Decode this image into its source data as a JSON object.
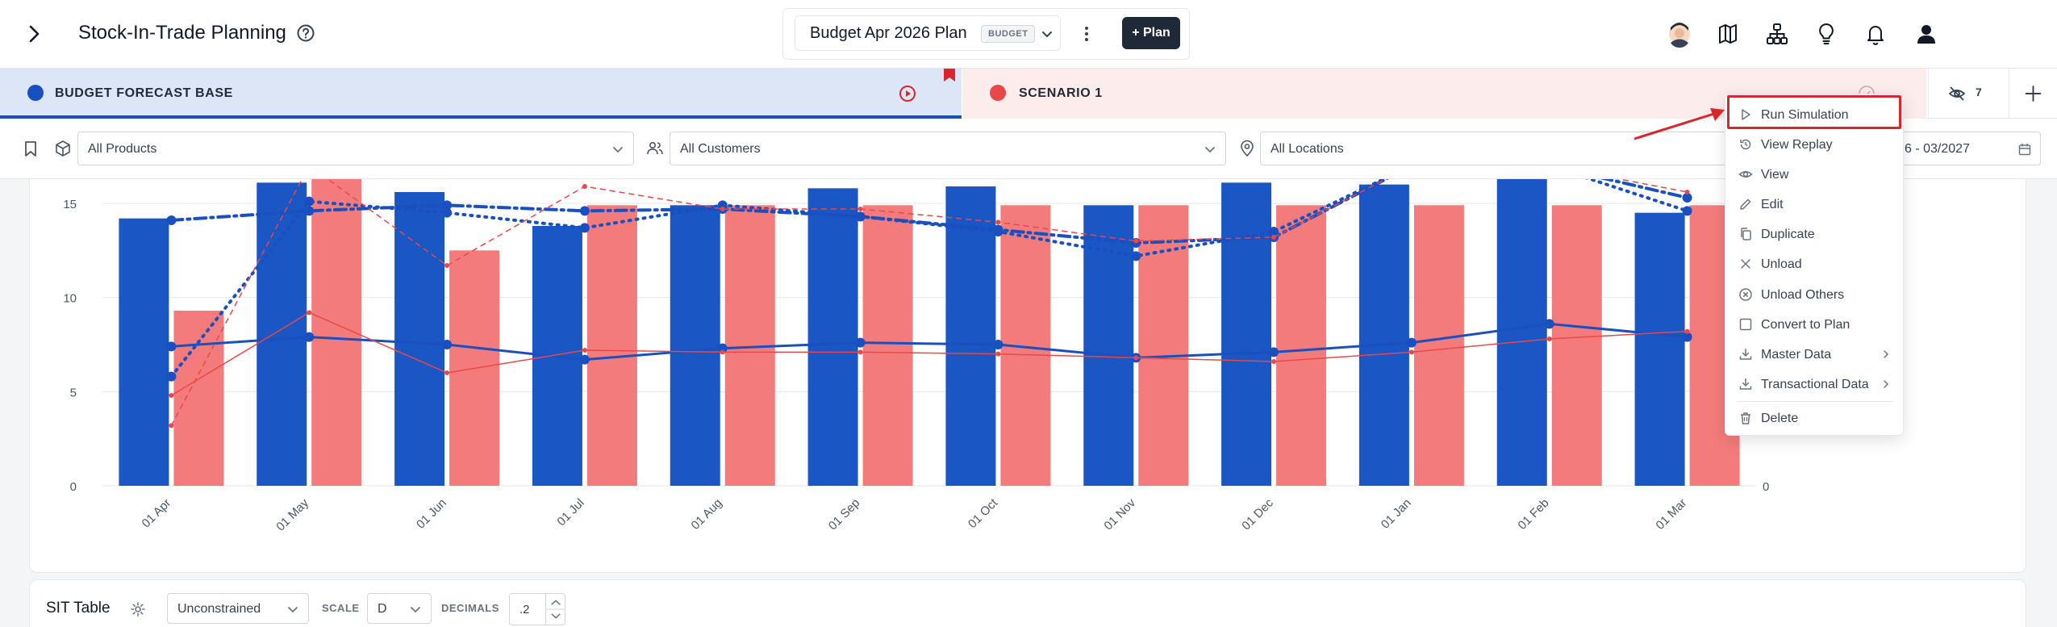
{
  "header": {
    "title": "Stock-In-Trade Planning",
    "plan_name": "Budget Apr 2026 Plan",
    "plan_badge": "BUDGET",
    "add_plan_label": "+ Plan"
  },
  "scenarios": {
    "base": {
      "label": "BUDGET FORECAST BASE",
      "color": "#1a4fbf"
    },
    "scenario1": {
      "label": "SCENARIO 1",
      "color": "#e94848"
    },
    "hidden_count": "7"
  },
  "filters": {
    "products": "All Products",
    "customers": "All Customers",
    "locations": "All Locations",
    "date_range": "6 - 03/2027"
  },
  "chart_data": {
    "type": "bar",
    "categories": [
      "01 Apr",
      "01 May",
      "01 Jun",
      "01 Jul",
      "01 Aug",
      "01 Sep",
      "01 Oct",
      "01 Nov",
      "01 Dec",
      "01 Jan",
      "01 Feb",
      "01 Mar"
    ],
    "ylim": [
      0,
      16.5
    ],
    "y_ticks": [
      "0",
      "5",
      "10",
      "15"
    ],
    "y2_ticks": [
      "0"
    ],
    "grid": true,
    "bars": [
      {
        "color": "#1a56c4",
        "values": [
          14.2,
          16.1,
          15.6,
          13.8,
          14.9,
          15.8,
          15.9,
          14.9,
          16.1,
          16.0,
          16.5,
          14.5
        ]
      },
      {
        "color": "#f47b7b",
        "values": [
          9.3,
          16.5,
          12.5,
          14.9,
          14.9,
          14.9,
          14.9,
          14.9,
          14.9,
          14.9,
          14.9,
          14.9
        ]
      }
    ],
    "lines": [
      {
        "color": "#1a4fbf",
        "style": "solid",
        "values": [
          7.4,
          7.9,
          7.5,
          6.7,
          7.3,
          7.6,
          7.5,
          6.8,
          7.1,
          7.6,
          8.6,
          7.9
        ]
      },
      {
        "color": "#1a4fbf",
        "style": "dashdot",
        "values": [
          14.1,
          14.6,
          14.9,
          14.6,
          14.7,
          14.3,
          13.6,
          12.9,
          13.2,
          17.0,
          17.0,
          15.3
        ]
      },
      {
        "color": "#1a4fbf",
        "style": "dotted",
        "values": [
          5.8,
          15.1,
          14.5,
          13.7,
          14.9,
          14.3,
          13.5,
          12.2,
          13.5,
          17.0,
          17.0,
          14.6
        ]
      },
      {
        "color": "#e94848",
        "style": "solid",
        "values": [
          4.8,
          9.2,
          6.0,
          7.2,
          7.1,
          7.1,
          7.0,
          6.8,
          6.6,
          7.1,
          7.8,
          8.2
        ]
      },
      {
        "color": "#e94848",
        "style": "dashed",
        "values": [
          3.2,
          17.0,
          11.7,
          15.9,
          14.7,
          14.7,
          14.0,
          13.0,
          13.2,
          17.0,
          17.0,
          15.6
        ]
      }
    ]
  },
  "menu": {
    "items": [
      {
        "label": "Run Simulation",
        "icon": "play-icon",
        "submenu": false
      },
      {
        "label": "View Replay",
        "icon": "history-icon",
        "submenu": false
      },
      {
        "label": "View",
        "icon": "eye-icon",
        "submenu": false
      },
      {
        "label": "Edit",
        "icon": "pencil-icon",
        "submenu": false
      },
      {
        "label": "Duplicate",
        "icon": "copy-icon",
        "submenu": false
      },
      {
        "label": "Unload",
        "icon": "x-icon",
        "submenu": false
      },
      {
        "label": "Unload Others",
        "icon": "circle-x-icon",
        "submenu": false
      },
      {
        "label": "Convert to Plan",
        "icon": "square-icon",
        "submenu": false
      },
      {
        "label": "Master Data",
        "icon": "download-icon",
        "submenu": true
      },
      {
        "label": "Transactional Data",
        "icon": "download-icon",
        "submenu": true
      },
      {
        "label": "Delete",
        "icon": "trash-icon",
        "submenu": false
      }
    ]
  },
  "sit_table": {
    "title": "SIT Table",
    "mode": "Unconstrained",
    "scale_label": "SCALE",
    "scale_value": "D",
    "decimals_label": "DECIMALS",
    "decimals_value": ".2"
  }
}
